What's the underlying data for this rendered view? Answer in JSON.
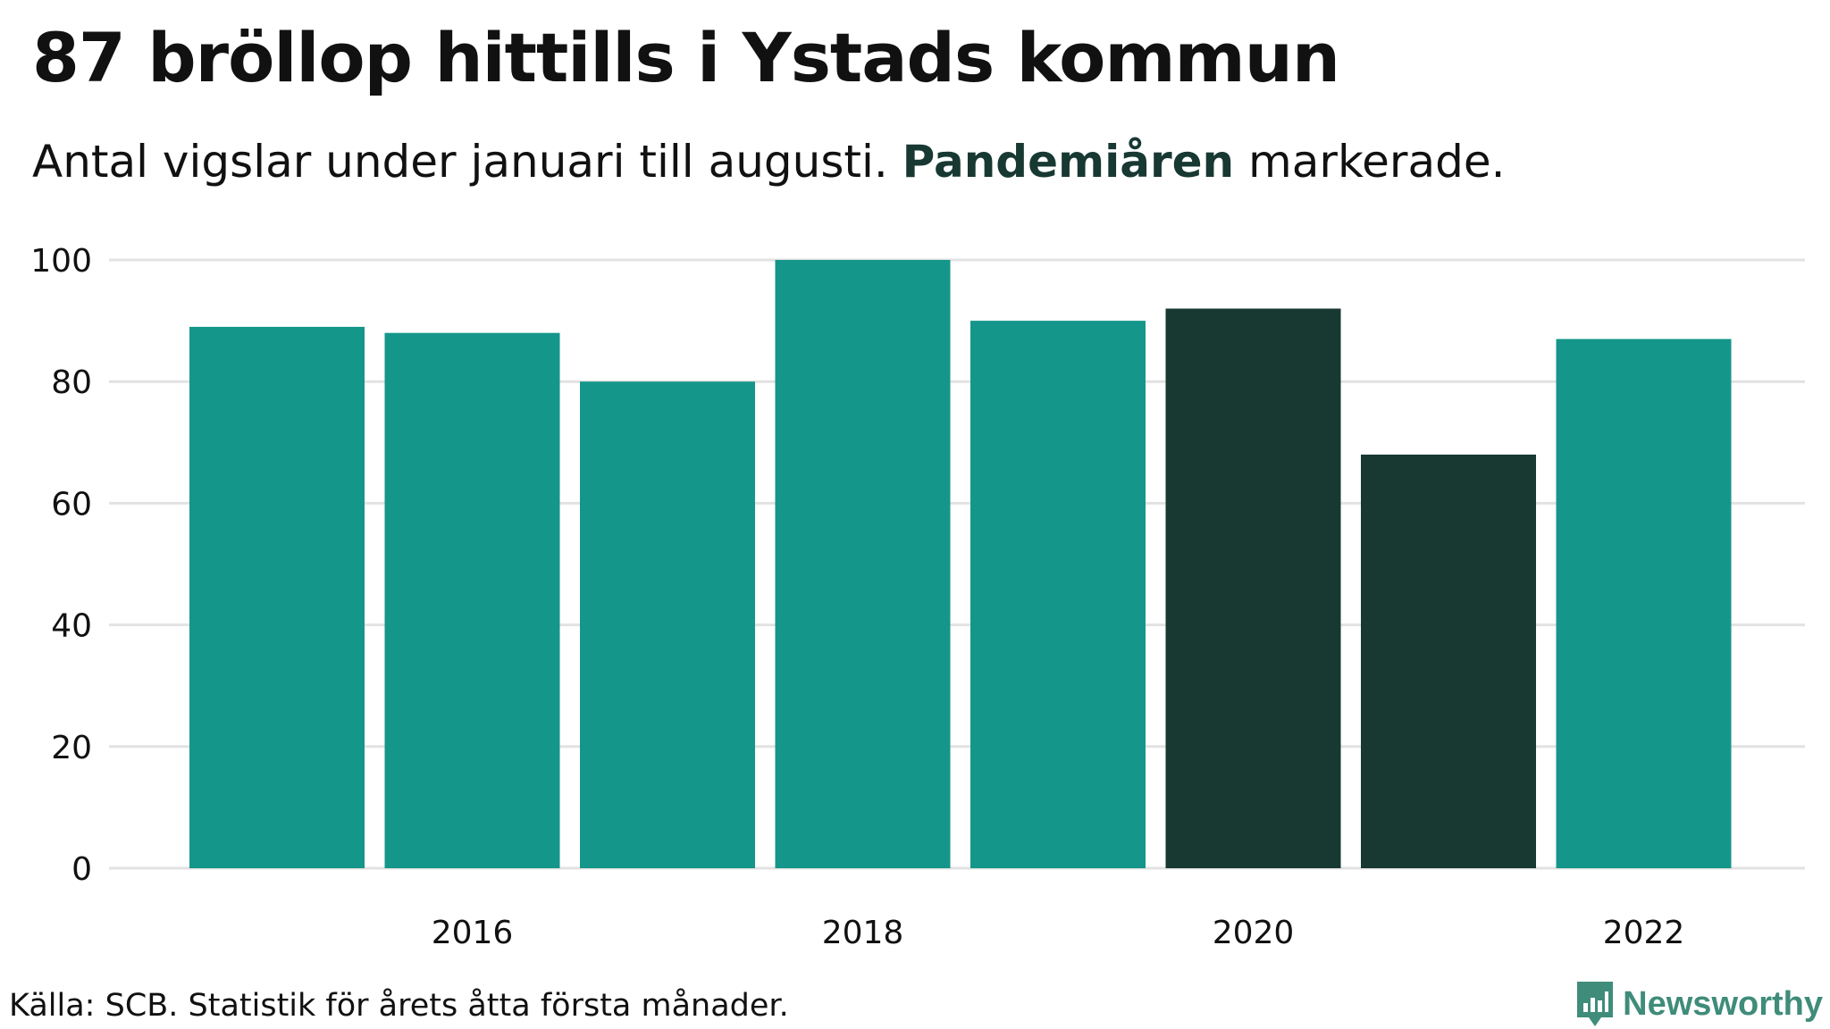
{
  "title": "87 bröllop hittills i Ystads kommun",
  "subtitle": {
    "before": "Antal vigslar under januari till augusti. ",
    "highlight": "Pandemiåren",
    "after": " markerade."
  },
  "source": "Källa: SCB. Statistik för årets åtta första månader.",
  "brand": "Newsworthy",
  "colors": {
    "normal": "#15968a",
    "pandemic": "#183832",
    "grid": "#e2e2e2",
    "highlight_text": "#183832",
    "brand": "#3f8c7a"
  },
  "chart_data": {
    "type": "bar",
    "categories": [
      "2015",
      "2016",
      "2017",
      "2018",
      "2019",
      "2020",
      "2021",
      "2022"
    ],
    "values": [
      89,
      88,
      80,
      100,
      90,
      92,
      68,
      87
    ],
    "highlighted": [
      false,
      false,
      false,
      false,
      false,
      true,
      true,
      false
    ],
    "x_tick_labels": [
      "2016",
      "2018",
      "2020",
      "2022"
    ],
    "y_ticks": [
      0,
      20,
      40,
      60,
      80,
      100
    ],
    "ylim": [
      0,
      100
    ],
    "grid": true
  }
}
